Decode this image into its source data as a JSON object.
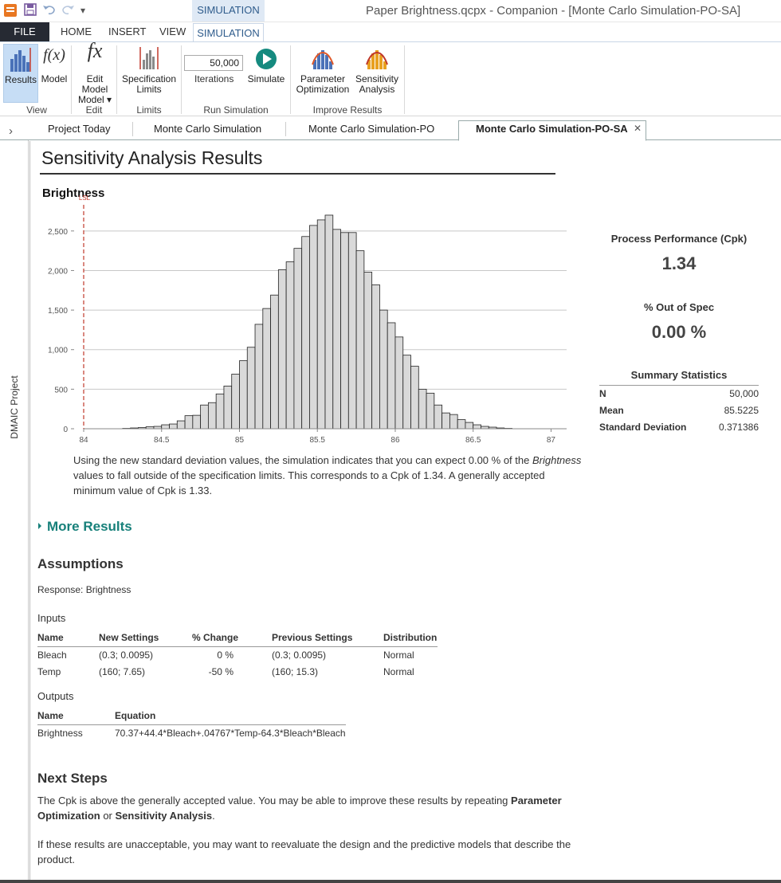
{
  "window": {
    "title": "Paper Brightness.qcpx - Companion - [Monte Carlo Simulation-PO-SA]",
    "context_tab": "SIMULATION"
  },
  "ribbon": {
    "tabs": [
      "FILE",
      "HOME",
      "INSERT",
      "VIEW",
      "SIMULATION"
    ],
    "buttons": {
      "results": "Results",
      "model": "Model",
      "edit_model": "Edit Model",
      "edit_model_2": "Model",
      "spec_limits_1": "Specification",
      "spec_limits_2": "Limits",
      "iterations_value": "50,000",
      "iterations": "Iterations",
      "simulate": "Simulate",
      "param_opt_1": "Parameter",
      "param_opt_2": "Optimization",
      "sens_1": "Sensitivity",
      "sens_2": "Analysis"
    },
    "groups": {
      "view": "View",
      "edit": "Edit",
      "limits": "Limits",
      "run": "Run Simulation",
      "improve": "Improve Results"
    },
    "icons": {
      "model": "f(x)",
      "edit": "fx"
    }
  },
  "doc_tabs": [
    "Project Today",
    "Monte Carlo Simulation",
    "Monte Carlo Simulation-PO",
    "Monte Carlo Simulation-PO-SA"
  ],
  "side_panel": {
    "label": "DMAIC Project"
  },
  "report": {
    "title": "Sensitivity Analysis Results",
    "explanation": {
      "part1": "Using the new standard deviation values, the simulation indicates that you can expect 0.00 % of the ",
      "italic": "Brightness",
      "part2": " values to fall outside of the specification limits. This corresponds to a Cpk of 1.34. A generally accepted minimum value of Cpk is 1.33."
    },
    "cpk_label": "Process Performance (Cpk)",
    "cpk_value": "1.34",
    "oos_label": "% Out of Spec",
    "oos_value": "0.00 %",
    "summary_label": "Summary Statistics",
    "summary": [
      {
        "k": "N",
        "v": "50,000"
      },
      {
        "k": "Mean",
        "v": "85.5225"
      },
      {
        "k": "Standard Deviation",
        "v": "0.371386"
      }
    ],
    "more_results": "More Results",
    "assumptions_h": "Assumptions",
    "response": "Response: Brightness",
    "inputs_h": "Inputs",
    "inputs_cols": [
      "Name",
      "New Settings",
      "% Change",
      "Previous Settings",
      "Distribution"
    ],
    "inputs_rows": [
      [
        "Bleach",
        "(0.3; 0.0095)",
        "0 %",
        "(0.3; 0.0095)",
        "Normal"
      ],
      [
        "Temp",
        "(160; 7.65)",
        "-50 %",
        "(160; 15.3)",
        "Normal"
      ]
    ],
    "outputs_h": "Outputs",
    "outputs_cols": [
      "Name",
      "Equation"
    ],
    "outputs_rows": [
      [
        "Brightness",
        "70.37+44.4*Bleach+.04767*Temp-64.3*Bleach*Bleach"
      ]
    ],
    "next_h": "Next Steps",
    "next_p1_a": "The Cpk is above the generally accepted value. You may be able to improve these results by repeating ",
    "next_p1_b": "Parameter Optimization",
    "next_p1_c": " or ",
    "next_p1_d": "Sensitivity Analysis",
    "next_p1_e": ".",
    "next_p2": "If these results are unacceptable, you may want to reevaluate the design and the predictive models that describe the product."
  },
  "chart_data": {
    "type": "bar",
    "title": "Brightness",
    "xlim": [
      84,
      87.1
    ],
    "ylim": [
      0,
      2750
    ],
    "xticks": [
      "84",
      "84.5",
      "85",
      "85.5",
      "86",
      "86.5",
      "87"
    ],
    "yticks": [
      "0",
      "500",
      "1,000",
      "1,500",
      "2,000",
      "2,500"
    ],
    "bin_start": 84.25,
    "bin_width": 0.05,
    "values": [
      5,
      10,
      15,
      25,
      30,
      50,
      60,
      100,
      165,
      170,
      300,
      330,
      440,
      540,
      690,
      860,
      1030,
      1320,
      1520,
      1690,
      2010,
      2110,
      2280,
      2430,
      2570,
      2640,
      2700,
      2520,
      2480,
      2480,
      2250,
      1980,
      1820,
      1500,
      1340,
      1160,
      930,
      790,
      500,
      450,
      300,
      200,
      180,
      115,
      80,
      50,
      30,
      20,
      10,
      5
    ],
    "lsl": 84,
    "lsl_label": "LSL",
    "bar_color": "#d9d9d9",
    "lsl_color": "#c0392b"
  }
}
